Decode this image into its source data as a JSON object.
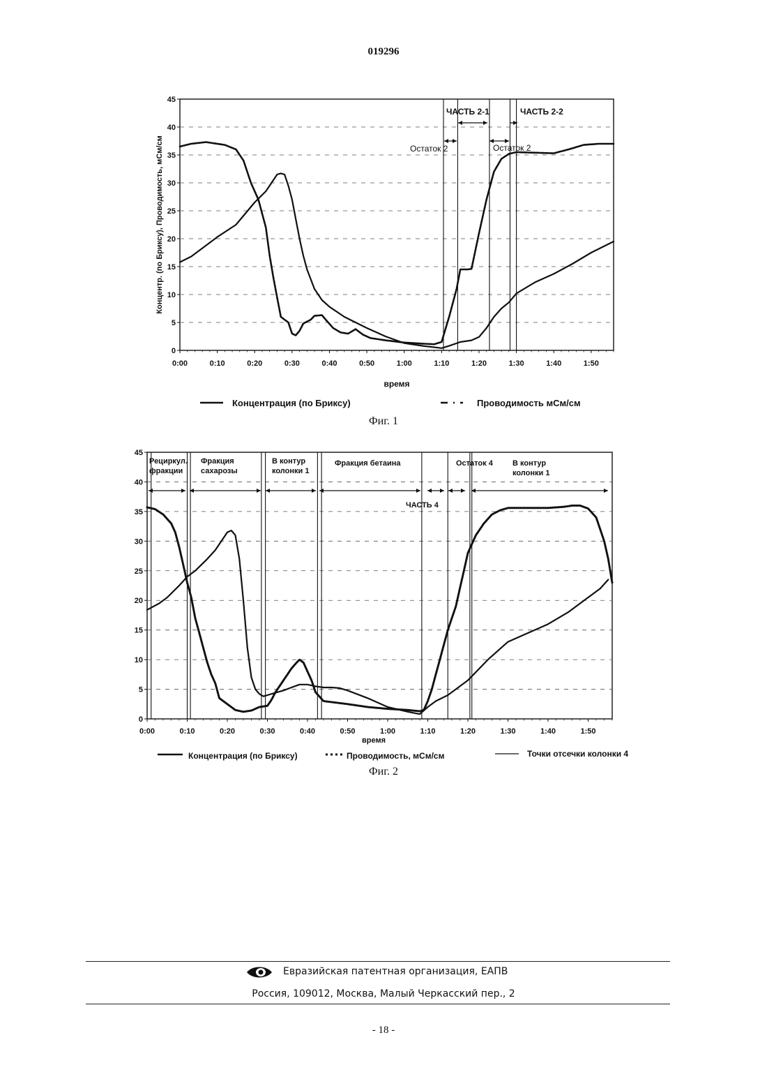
{
  "header": {
    "doc_number": "019296"
  },
  "colors": {
    "ink": "#111111",
    "grid": "#555555",
    "paper": "#ffffff"
  },
  "chart_data": [
    {
      "type": "line",
      "caption": "Фиг. 1",
      "xlabel": "время",
      "ylabel": "Концентр. (по Бриксу), Проводимость, мСм/см",
      "xlim_minutes": [
        0,
        116
      ],
      "ylim": [
        0,
        45
      ],
      "grid": "horizontal dashed",
      "legend_position": "bottom",
      "x_tick_labels": [
        "0:00",
        "0:10",
        "0:20",
        "0:30",
        "0:40",
        "0:50",
        "1:00",
        "1:10",
        "1:20",
        "1:30",
        "1:40",
        "1:50"
      ],
      "y_tick_labels": [
        "0",
        "5",
        "10",
        "15",
        "20",
        "25",
        "30",
        "35",
        "40",
        "45"
      ],
      "series": [
        {
          "name": "Концентрация (по Бриксу)",
          "style": "solid",
          "x": [
            0,
            3,
            6,
            10,
            15,
            20,
            23,
            25,
            26,
            27,
            28,
            29,
            30,
            31,
            32,
            33,
            34,
            36,
            38,
            40,
            44,
            50,
            55,
            60,
            65,
            70,
            72,
            75,
            78,
            80,
            82,
            84,
            86,
            88,
            90,
            95,
            100,
            105,
            110,
            116
          ],
          "y": [
            15.8,
            16.8,
            18.3,
            20.3,
            22.5,
            26.5,
            28.5,
            30.5,
            31.5,
            31.7,
            31.5,
            29.5,
            27,
            23.5,
            20,
            17,
            14.5,
            11,
            9,
            7.8,
            6,
            4,
            2.5,
            1.3,
            0.8,
            0.4,
            0.8,
            1.5,
            1.8,
            2.4,
            4,
            6,
            7.5,
            8.6,
            10.2,
            12.2,
            13.7,
            15.5,
            17.5,
            19.5
          ]
        },
        {
          "name": "Проводимость мСм/см",
          "style": "dashed",
          "x": [
            0,
            3,
            7,
            12,
            15,
            17,
            19,
            21,
            23,
            24,
            25,
            26,
            27,
            28,
            29,
            30,
            31,
            32,
            33,
            35,
            36,
            38,
            39,
            41,
            43,
            45,
            47,
            49,
            51,
            55,
            60,
            65,
            68,
            70,
            72,
            74,
            75,
            77,
            78,
            80,
            82,
            84,
            86,
            88,
            90,
            95,
            100,
            104,
            108,
            112,
            116
          ],
          "y": [
            36.5,
            37,
            37.3,
            36.8,
            36,
            34,
            30,
            27,
            22,
            17,
            13,
            9.5,
            6,
            5.5,
            5,
            3,
            2.7,
            3.5,
            4.8,
            5.5,
            6.2,
            6.3,
            5.5,
            4,
            3.2,
            3,
            3.8,
            2.8,
            2.2,
            1.8,
            1.4,
            1.2,
            1.1,
            1.5,
            6,
            11,
            14.5,
            14.5,
            14.6,
            21,
            27,
            32,
            34.3,
            35.2,
            35.5,
            35.4,
            35.3,
            36,
            36.8,
            37,
            37
          ]
        }
      ],
      "cut_lines_minutes": [
        70.5,
        74.3,
        82.8,
        88.3,
        90
      ],
      "annotations": [
        "ЧАСТЬ 2-1",
        "ЧАСТЬ 2-2",
        "Остаток 2",
        "Остаток 2"
      ],
      "legend_entries": [
        "Концентрация (по Бриксу)",
        "Проводимость мСм/см"
      ]
    },
    {
      "type": "line",
      "caption": "Фиг. 2",
      "xlabel": "время",
      "xlim_minutes": [
        0,
        116
      ],
      "ylim": [
        0,
        45
      ],
      "grid": "horizontal dashed",
      "legend_position": "bottom",
      "x_tick_labels": [
        "0:00",
        "0:10",
        "0:20",
        "0:30",
        "0:40",
        "0:50",
        "1:00",
        "1:10",
        "1:20",
        "1:30",
        "1:40",
        "1:50"
      ],
      "y_tick_labels": [
        "0",
        "5",
        "10",
        "15",
        "20",
        "25",
        "30",
        "35",
        "40",
        "45"
      ],
      "series": [
        {
          "name": "Концентрация (по Бриксу)",
          "style": "solid",
          "x": [
            0,
            3,
            5,
            8,
            10,
            12,
            15,
            17,
            19,
            20,
            21,
            22,
            23,
            24,
            25,
            26,
            27,
            28,
            29,
            30,
            32,
            34,
            36,
            38,
            40,
            42,
            44,
            46,
            48,
            50,
            55,
            60,
            65,
            68,
            70,
            72,
            75,
            80,
            85,
            90,
            95,
            100,
            105,
            110,
            113,
            115
          ],
          "y": [
            18.4,
            19.5,
            20.5,
            22.5,
            24,
            25,
            27,
            28.5,
            30.5,
            31.5,
            31.8,
            31,
            27,
            20,
            12,
            7,
            5,
            4.2,
            3.8,
            4,
            4.4,
            4.8,
            5.3,
            5.8,
            5.8,
            5.5,
            5.3,
            5.3,
            5.2,
            4.8,
            3.5,
            2,
            1.2,
            0.8,
            2,
            3,
            4,
            6.5,
            10,
            13,
            14.5,
            16,
            18,
            20.5,
            22,
            23.5
          ]
        },
        {
          "name": "Проводимость,  мСм/см",
          "style": "dotted",
          "x": [
            0,
            2,
            4,
            6,
            7,
            8,
            9,
            10,
            11,
            12,
            13,
            14,
            15,
            16,
            17,
            18,
            20,
            22,
            24,
            26,
            28,
            30,
            31,
            32,
            33,
            34,
            35,
            36,
            37,
            38,
            39,
            40,
            41,
            42,
            44,
            50,
            55,
            60,
            65,
            68,
            69,
            70,
            71,
            72,
            73,
            74,
            75,
            76,
            77,
            78,
            79,
            80,
            82,
            84,
            86,
            88,
            90,
            95,
            100,
            104,
            106,
            108,
            110,
            112,
            113,
            114,
            115,
            116
          ],
          "y": [
            35.7,
            35.4,
            34.5,
            33,
            31.5,
            29,
            26,
            23,
            20.5,
            17,
            14.5,
            12,
            9.5,
            7.5,
            6,
            3.5,
            2.5,
            1.5,
            1.2,
            1.4,
            2,
            2.2,
            3.2,
            4.5,
            5.5,
            6.5,
            7.5,
            8.5,
            9.3,
            10,
            9.5,
            8,
            6.5,
            4.5,
            3,
            2.5,
            2,
            1.7,
            1.5,
            1.3,
            1.5,
            3,
            5,
            7.5,
            10,
            12.5,
            15,
            17,
            19,
            22,
            25,
            28,
            31,
            33,
            34.5,
            35.2,
            35.6,
            35.6,
            35.6,
            35.8,
            36,
            36,
            35.5,
            34,
            32,
            30,
            27,
            23
          ]
        }
      ],
      "cut_lines_minutes": [
        1,
        10,
        10.8,
        28.5,
        29.5,
        42.5,
        43.5,
        68.5,
        75,
        80.5,
        81
      ],
      "region_labels": [
        {
          "lines": [
            "Рециркул.",
            "фракции"
          ]
        },
        {
          "lines": [
            "Фракция",
            "сахарозы"
          ]
        },
        {
          "lines": [
            "В контур",
            "колонки 1"
          ]
        },
        {
          "lines": [
            "Фракция бетаина"
          ]
        },
        {
          "lines": [
            "Остаток 4"
          ]
        },
        {
          "lines": [
            "В контур",
            "колонки 1"
          ]
        }
      ],
      "annotations": [
        "ЧАСТЬ 4"
      ],
      "legend_entries": [
        "Концентрация (по Бриксу)",
        "Проводимость,  мСм/см",
        "Точки отсечки колонки 4"
      ]
    }
  ],
  "footer": {
    "organization": "Евразийская патентная организация, ЕАПВ",
    "address": "Россия, 109012, Москва, Малый Черкасский пер., 2",
    "page_number": "- 18 -"
  }
}
